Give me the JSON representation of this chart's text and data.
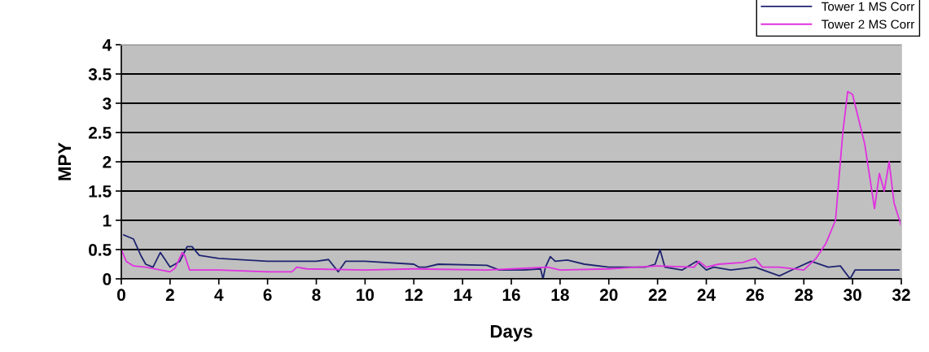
{
  "chart_data": {
    "type": "line",
    "xlabel": "Days",
    "ylabel": "MPY",
    "xlim": [
      0,
      32
    ],
    "xticks": [
      0,
      2,
      4,
      6,
      8,
      10,
      12,
      14,
      16,
      18,
      20,
      22,
      24,
      26,
      28,
      30,
      32
    ],
    "ylim": [
      0,
      4
    ],
    "yticks": [
      0,
      0.5,
      1,
      1.5,
      2,
      2.5,
      3,
      3.5,
      4
    ],
    "grid": "y",
    "legend": "top right",
    "marker": "none",
    "line_style": "solid",
    "series": [
      {
        "name": "Tower 1 MS Corr",
        "color": "#1f2470",
        "x": [
          0.1,
          0.5,
          0.8,
          1.0,
          1.3,
          1.6,
          2.0,
          2.4,
          2.7,
          2.9,
          3.2,
          4,
          6,
          8,
          8.5,
          8.9,
          9.2,
          10,
          12,
          12.2,
          12.5,
          13,
          15,
          15.5,
          16.5,
          17.2,
          17.3,
          17.4,
          17.6,
          17.8,
          18.3,
          19,
          20,
          21.5,
          21.9,
          22.1,
          22.3,
          23,
          23.6,
          24,
          24.3,
          25,
          26,
          27,
          27.5,
          28.3,
          29,
          29.5,
          29.9,
          30.1,
          31.9
        ],
        "values": [
          0.75,
          0.68,
          0.4,
          0.25,
          0.2,
          0.45,
          0.2,
          0.3,
          0.55,
          0.55,
          0.4,
          0.35,
          0.3,
          0.3,
          0.33,
          0.12,
          0.3,
          0.3,
          0.25,
          0.2,
          0.2,
          0.25,
          0.23,
          0.15,
          0.15,
          0.17,
          0.0,
          0.2,
          0.38,
          0.3,
          0.32,
          0.25,
          0.2,
          0.2,
          0.25,
          0.5,
          0.2,
          0.15,
          0.3,
          0.15,
          0.2,
          0.15,
          0.2,
          0.05,
          0.15,
          0.3,
          0.2,
          0.22,
          0.0,
          0.15,
          0.15
        ]
      },
      {
        "name": "Tower 2 MS Corr",
        "color": "#e030e0",
        "x": [
          0,
          0.2,
          0.5,
          1,
          2,
          2.2,
          2.5,
          2.6,
          2.8,
          4,
          6,
          7,
          7.2,
          7.6,
          10,
          12,
          15,
          16,
          17.5,
          18,
          20,
          22,
          23.5,
          23.7,
          24,
          24.5,
          25.5,
          26,
          26.3,
          27,
          28,
          28.5,
          28.9,
          29.3,
          29.6,
          29.8,
          30,
          30.5,
          30.9,
          31.1,
          31.3,
          31.5,
          31.7,
          32
        ],
        "values": [
          0.5,
          0.3,
          0.22,
          0.2,
          0.12,
          0.18,
          0.45,
          0.4,
          0.15,
          0.15,
          0.12,
          0.12,
          0.2,
          0.17,
          0.15,
          0.17,
          0.15,
          0.17,
          0.2,
          0.15,
          0.17,
          0.22,
          0.2,
          0.3,
          0.2,
          0.25,
          0.28,
          0.35,
          0.2,
          0.2,
          0.15,
          0.35,
          0.6,
          1.0,
          2.5,
          3.2,
          3.15,
          2.3,
          1.2,
          1.8,
          1.5,
          2.0,
          1.3,
          0.9
        ]
      }
    ]
  }
}
